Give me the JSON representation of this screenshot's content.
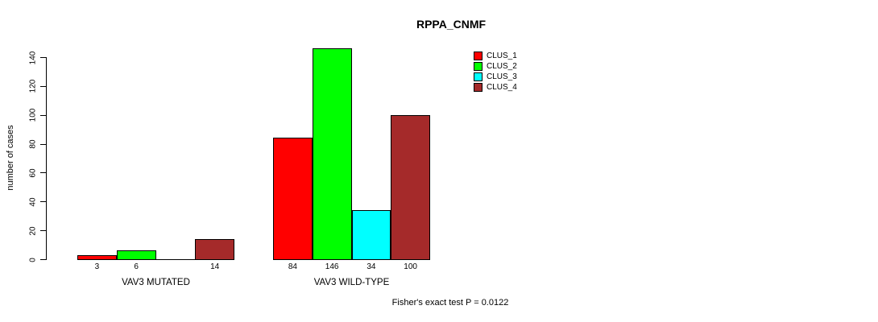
{
  "page": {
    "background": "#FFFFFF",
    "text_color": "#000000"
  },
  "chart_data": {
    "type": "bar",
    "title": "RPPA_CNMF",
    "ylabel": "number of cases",
    "xlabel": "",
    "ylim": [
      0,
      140
    ],
    "yticks": [
      0,
      20,
      40,
      60,
      80,
      100,
      120,
      140
    ],
    "grid": false,
    "legend_position": "top-right",
    "series": [
      {
        "name": "CLUS_1",
        "color": "#FF0000"
      },
      {
        "name": "CLUS_2",
        "color": "#00FF00"
      },
      {
        "name": "CLUS_3",
        "color": "#00FFFF"
      },
      {
        "name": "CLUS_4",
        "color": "#A52A2A"
      }
    ],
    "groups": [
      {
        "label": "VAV3 MUTATED",
        "values": [
          3,
          6,
          0,
          14
        ]
      },
      {
        "label": "VAV3 WILD-TYPE",
        "values": [
          84,
          146,
          34,
          100
        ]
      }
    ],
    "bar_value_labels": "shown under each bar; zero-value bars have no bar and no label",
    "annotation": "Fisher's exact test P = 0.0122"
  }
}
